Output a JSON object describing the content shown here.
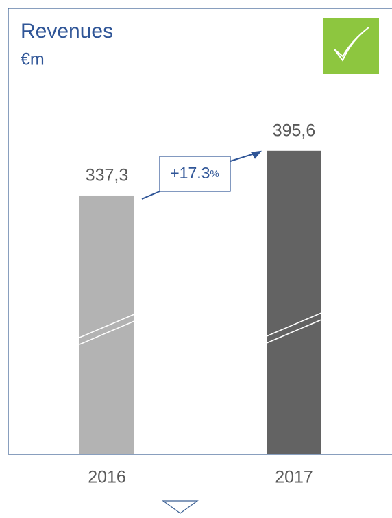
{
  "chart_data": {
    "type": "bar",
    "title": "Revenues",
    "subtitle": "€m",
    "categories": [
      "2016",
      "2017"
    ],
    "values": [
      337.3,
      395.6
    ],
    "value_labels": [
      "337,3",
      "395,6"
    ],
    "colors": [
      "#b3b3b3",
      "#636363"
    ],
    "ylim": [
      0,
      450
    ],
    "annotation": {
      "number": "+17.3",
      "unit": "%"
    }
  }
}
